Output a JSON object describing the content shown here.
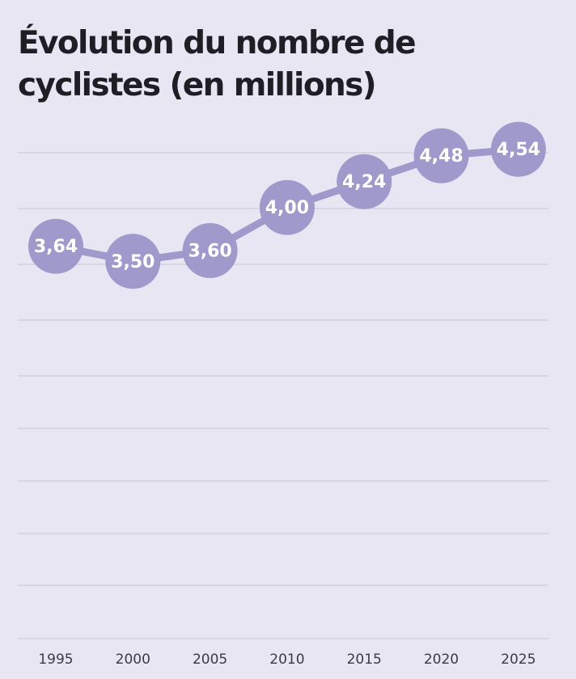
{
  "chart_data": {
    "type": "line",
    "title": "Évolution du nombre de cyclistes (en millions)",
    "x": [
      "1995",
      "2000",
      "2005",
      "2010",
      "2015",
      "2020",
      "2025"
    ],
    "series": [
      {
        "values": [
          3.64,
          3.5,
          3.6,
          4.0,
          4.24,
          4.48,
          4.54
        ],
        "labels": [
          "3,64",
          "3,50",
          "3,60",
          "4,00",
          "4,24",
          "4,48",
          "4,54"
        ]
      }
    ],
    "ylim": [
      0,
      4.8
    ],
    "grid": true,
    "legend": "none",
    "colors": {
      "series": "#9f99cc",
      "marker": "#9f99cc",
      "grid": "#d3d0df",
      "background": "#e9e6f4"
    }
  }
}
